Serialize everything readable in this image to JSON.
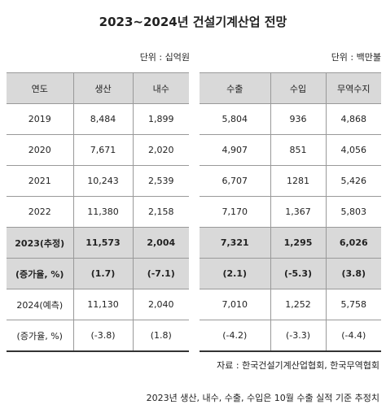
{
  "title": "2023~2024년 건설기계산업 전망",
  "left_unit": "단위 : 십억원",
  "right_unit": "단위 : 백만불",
  "left_table": {
    "headers": [
      "연도",
      "생산",
      "내수"
    ],
    "rows": [
      [
        "2019",
        "8,484",
        "1,899"
      ],
      [
        "2020",
        "7,671",
        "2,020"
      ],
      [
        "2021",
        "10,243",
        "2,539"
      ],
      [
        "2022",
        "11,380",
        "2,158"
      ],
      [
        "2023(추정)",
        "11,573",
        "2,004"
      ],
      [
        "(증가율, %)",
        "(1.7)",
        "(-7.1)"
      ],
      [
        "2024(예측)",
        "11,130",
        "2,040"
      ],
      [
        "(증가율, %)",
        "(-3.8)",
        "(1.8)"
      ]
    ]
  },
  "right_table": {
    "headers": [
      "수출",
      "수입",
      "무역수지"
    ],
    "rows": [
      [
        "5,804",
        "936",
        "4,868"
      ],
      [
        "4,907",
        "851",
        "4,056"
      ],
      [
        "6,707",
        "1281",
        "5,426"
      ],
      [
        "7,170",
        "1,367",
        "5,803"
      ],
      [
        "7,321",
        "1,295",
        "6,026"
      ],
      [
        "(2.1)",
        "(-5.3)",
        "(3.8)"
      ],
      [
        "7,010",
        "1,252",
        "5,758"
      ],
      [
        "(-4.2)",
        "(-3.3)",
        "(-4.4)"
      ]
    ]
  },
  "source": "자료 : 한국건설기계산업협회, 한국무역협회",
  "note": "2023년 생산, 내수, 수출, 수입은 10월 수출 실적 기준 추정치"
}
